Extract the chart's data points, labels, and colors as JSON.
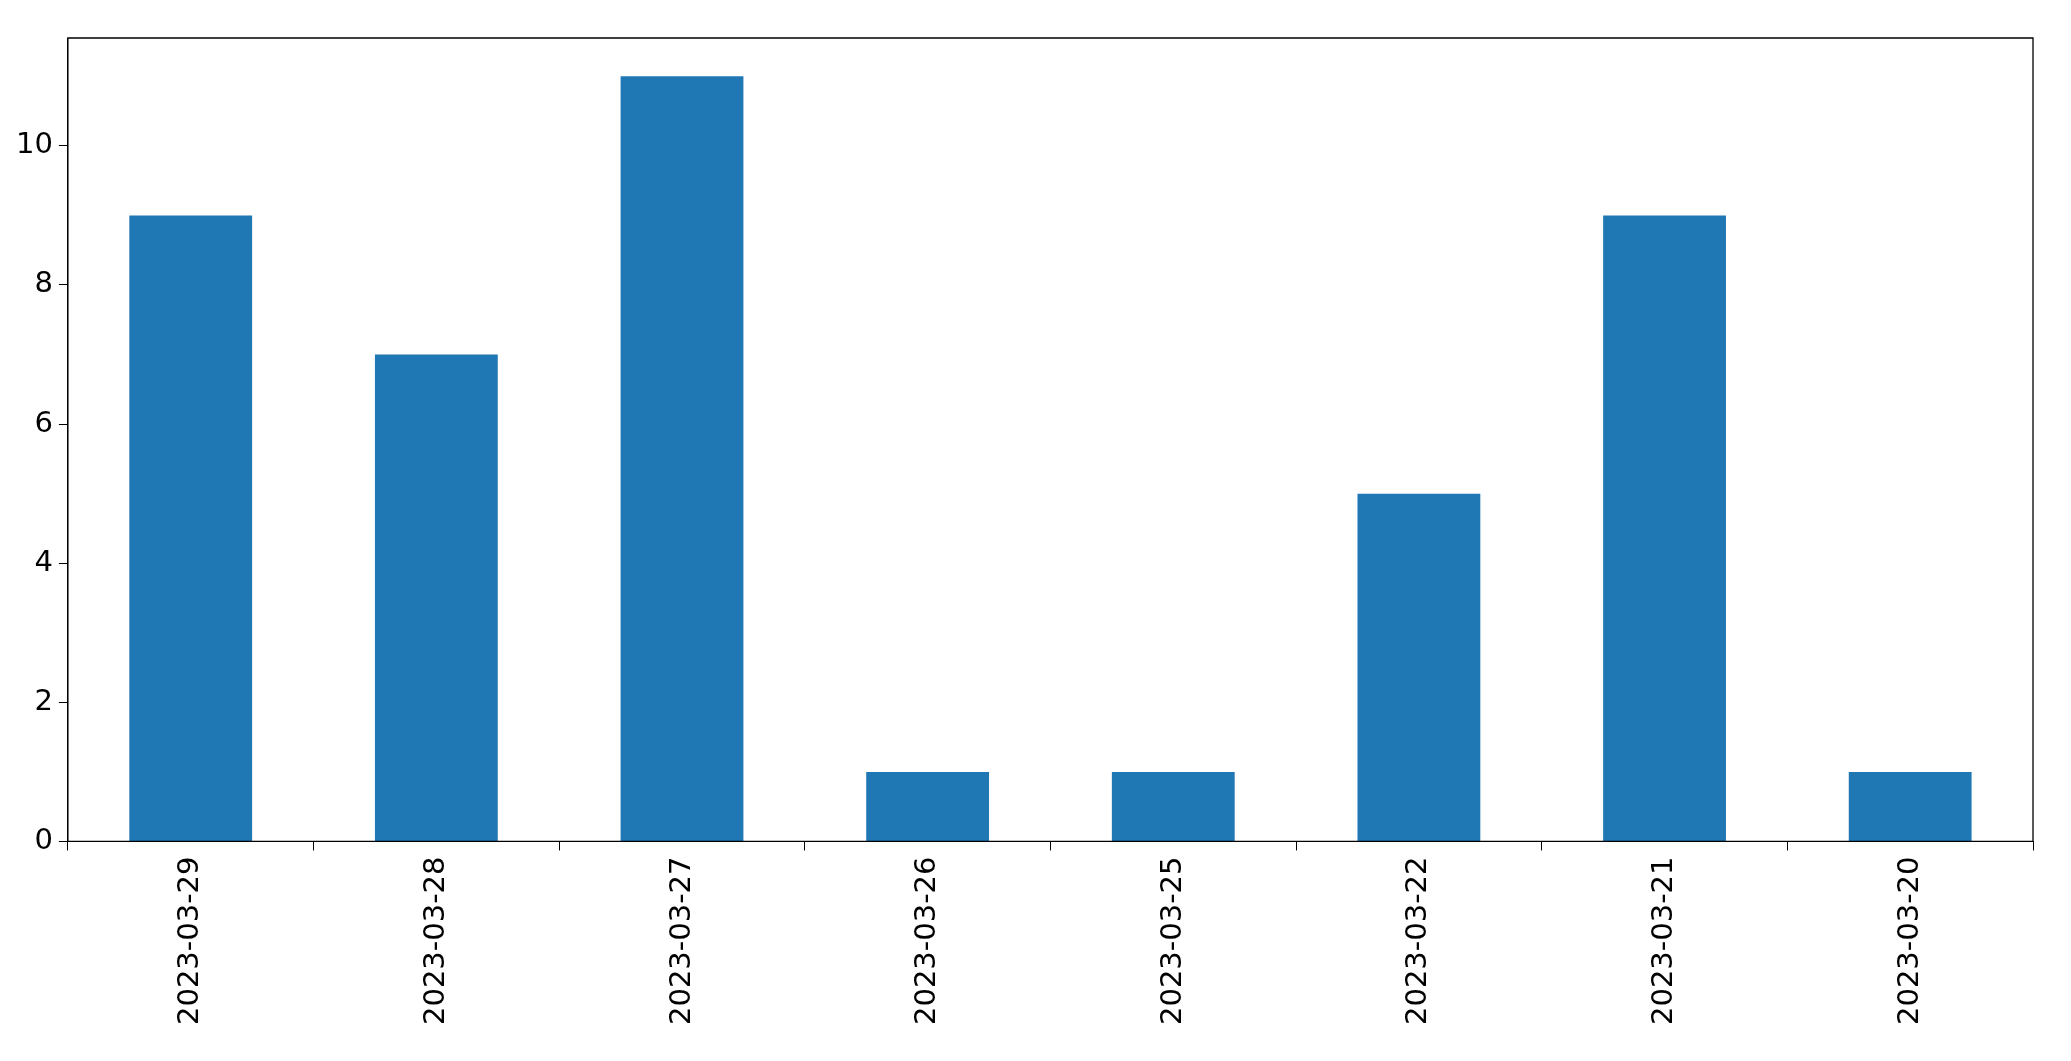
{
  "chart_data": {
    "type": "bar",
    "categories": [
      "2023-03-29",
      "2023-03-28",
      "2023-03-27",
      "2023-03-26",
      "2023-03-25",
      "2023-03-22",
      "2023-03-21",
      "2023-03-20"
    ],
    "values": [
      9,
      7,
      11,
      1,
      1,
      5,
      9,
      1
    ],
    "color": "#1f77b4",
    "ylim": [
      0,
      11.55
    ],
    "yticks": [
      0,
      2,
      4,
      6,
      8,
      10
    ],
    "grid": false,
    "legend": false
  }
}
